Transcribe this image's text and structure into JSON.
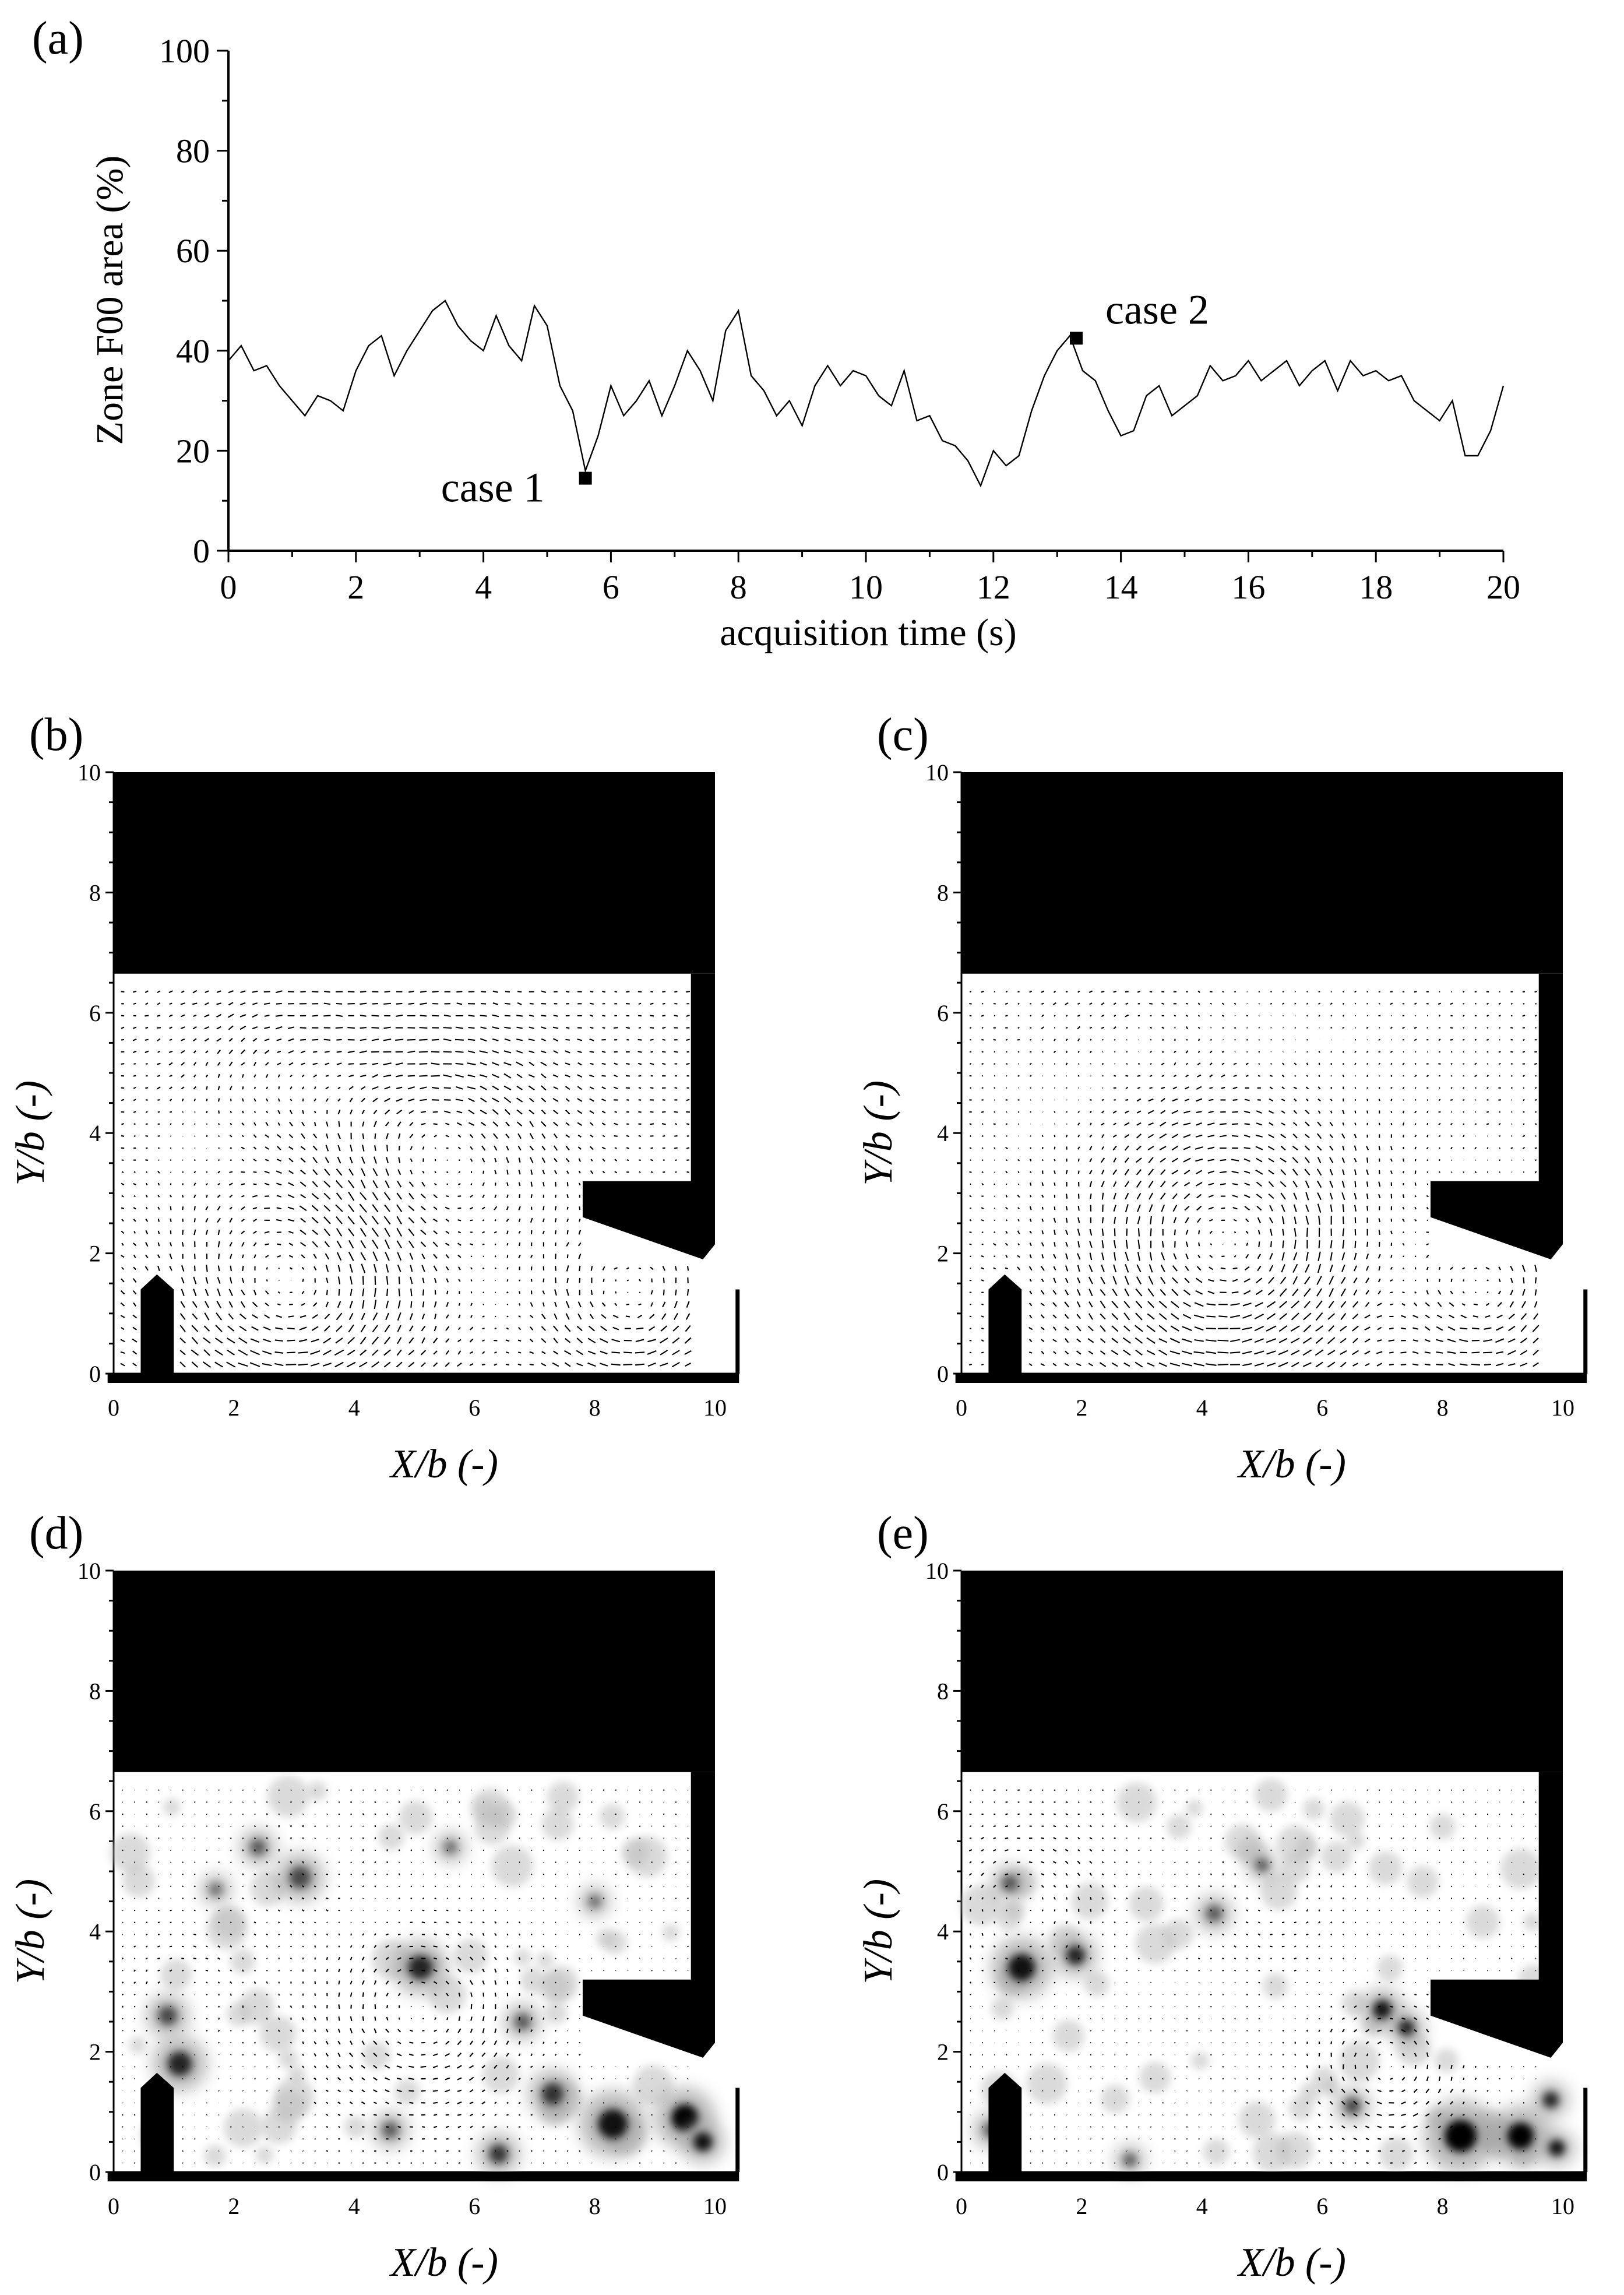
{
  "chart_data": [
    {
      "panel": "(a)",
      "type": "line",
      "xlabel": "acquisition time (s)",
      "ylabel": "Zone F00 area (%)",
      "xlim": [
        0,
        20
      ],
      "ylim": [
        0,
        100
      ],
      "xticks": [
        "0",
        "2",
        "4",
        "6",
        "8",
        "10",
        "12",
        "14",
        "16",
        "18",
        "20"
      ],
      "yticks": [
        "0",
        "20",
        "40",
        "60",
        "80",
        "100"
      ],
      "series": [
        {
          "x": [
            0,
            0.2,
            0.4,
            0.6,
            0.8,
            1,
            1.2,
            1.4,
            1.6,
            1.8,
            2,
            2.2,
            2.4,
            2.6,
            2.8,
            3,
            3.2,
            3.4,
            3.6,
            3.8,
            4,
            4.2,
            4.4,
            4.6,
            4.8,
            5,
            5.2,
            5.4,
            5.6,
            5.8,
            6,
            6.2,
            6.4,
            6.6,
            6.8,
            7,
            7.2,
            7.4,
            7.6,
            7.8,
            8,
            8.2,
            8.4,
            8.6,
            8.8,
            9,
            9.2,
            9.4,
            9.6,
            9.8,
            10,
            10.2,
            10.4,
            10.6,
            10.8,
            11,
            11.2,
            11.4,
            11.6,
            11.8,
            12,
            12.2,
            12.4,
            12.6,
            12.8,
            13,
            13.2,
            13.4,
            13.6,
            13.8,
            14,
            14.2,
            14.4,
            14.6,
            14.8,
            15,
            15.2,
            15.4,
            15.6,
            15.8,
            16,
            16.2,
            16.4,
            16.6,
            16.8,
            17,
            17.2,
            17.4,
            17.6,
            17.8,
            18,
            18.2,
            18.4,
            18.6,
            18.8,
            19,
            19.2,
            19.4,
            19.6,
            19.8,
            20
          ],
          "y": [
            38,
            41,
            36,
            37,
            33,
            30,
            27,
            31,
            30,
            28,
            36,
            41,
            43,
            35,
            40,
            44,
            48,
            50,
            45,
            42,
            40,
            47,
            41,
            38,
            49,
            45,
            33,
            28,
            16,
            23,
            33,
            27,
            30,
            34,
            27,
            33,
            40,
            36,
            30,
            44,
            48,
            35,
            32,
            27,
            30,
            25,
            33,
            37,
            33,
            36,
            35,
            31,
            29,
            36,
            26,
            27,
            22,
            21,
            18,
            13,
            20,
            17,
            19,
            28,
            35,
            40,
            43,
            36,
            34,
            28,
            23,
            24,
            31,
            33,
            27,
            29,
            31,
            37,
            34,
            35,
            38,
            34,
            36,
            38,
            33,
            36,
            38,
            32,
            38,
            35,
            36,
            34,
            35,
            30,
            28,
            26,
            30,
            19,
            19,
            24,
            33
          ]
        }
      ],
      "markers": [
        {
          "label": "case 1",
          "x": 5.6,
          "y": 14.5
        },
        {
          "label": "case 2",
          "x": 13.3,
          "y": 42.5
        }
      ]
    },
    {
      "panel": "(b)",
      "type": "vector-field",
      "xlabel": "X/b (-)",
      "ylabel": "Y/b (-)",
      "xlim": [
        0,
        10
      ],
      "ylim": [
        0,
        10
      ],
      "xticks": [
        "0",
        "2",
        "4",
        "6",
        "8",
        "10"
      ],
      "yticks": [
        "0",
        "2",
        "4",
        "6",
        "8",
        "10"
      ],
      "background": "none"
    },
    {
      "panel": "(c)",
      "type": "vector-field",
      "xlabel": "X/b (-)",
      "ylabel": "Y/b (-)",
      "xlim": [
        0,
        10
      ],
      "ylim": [
        0,
        10
      ],
      "xticks": [
        "0",
        "2",
        "4",
        "6",
        "8",
        "10"
      ],
      "yticks": [
        "0",
        "2",
        "4",
        "6",
        "8",
        "10"
      ],
      "background": "none"
    },
    {
      "panel": "(d)",
      "type": "vector-field",
      "xlabel": "X/b (-)",
      "ylabel": "Y/b (-)",
      "xlim": [
        0,
        10
      ],
      "ylim": [
        0,
        10
      ],
      "xticks": [
        "0",
        "2",
        "4",
        "6",
        "8",
        "10"
      ],
      "yticks": [
        "0",
        "2",
        "4",
        "6",
        "8",
        "10"
      ],
      "background": "grayscale-contour"
    },
    {
      "panel": "(e)",
      "type": "vector-field",
      "xlabel": "X/b (-)",
      "ylabel": "Y/b (-)",
      "xlim": [
        0,
        10
      ],
      "ylim": [
        0,
        10
      ],
      "xticks": [
        "0",
        "2",
        "4",
        "6",
        "8",
        "10"
      ],
      "yticks": [
        "0",
        "2",
        "4",
        "6",
        "8",
        "10"
      ],
      "background": "grayscale-contour"
    }
  ],
  "colors": {
    "ink": "#000000",
    "paper": "#ffffff",
    "contour": "#808080"
  }
}
